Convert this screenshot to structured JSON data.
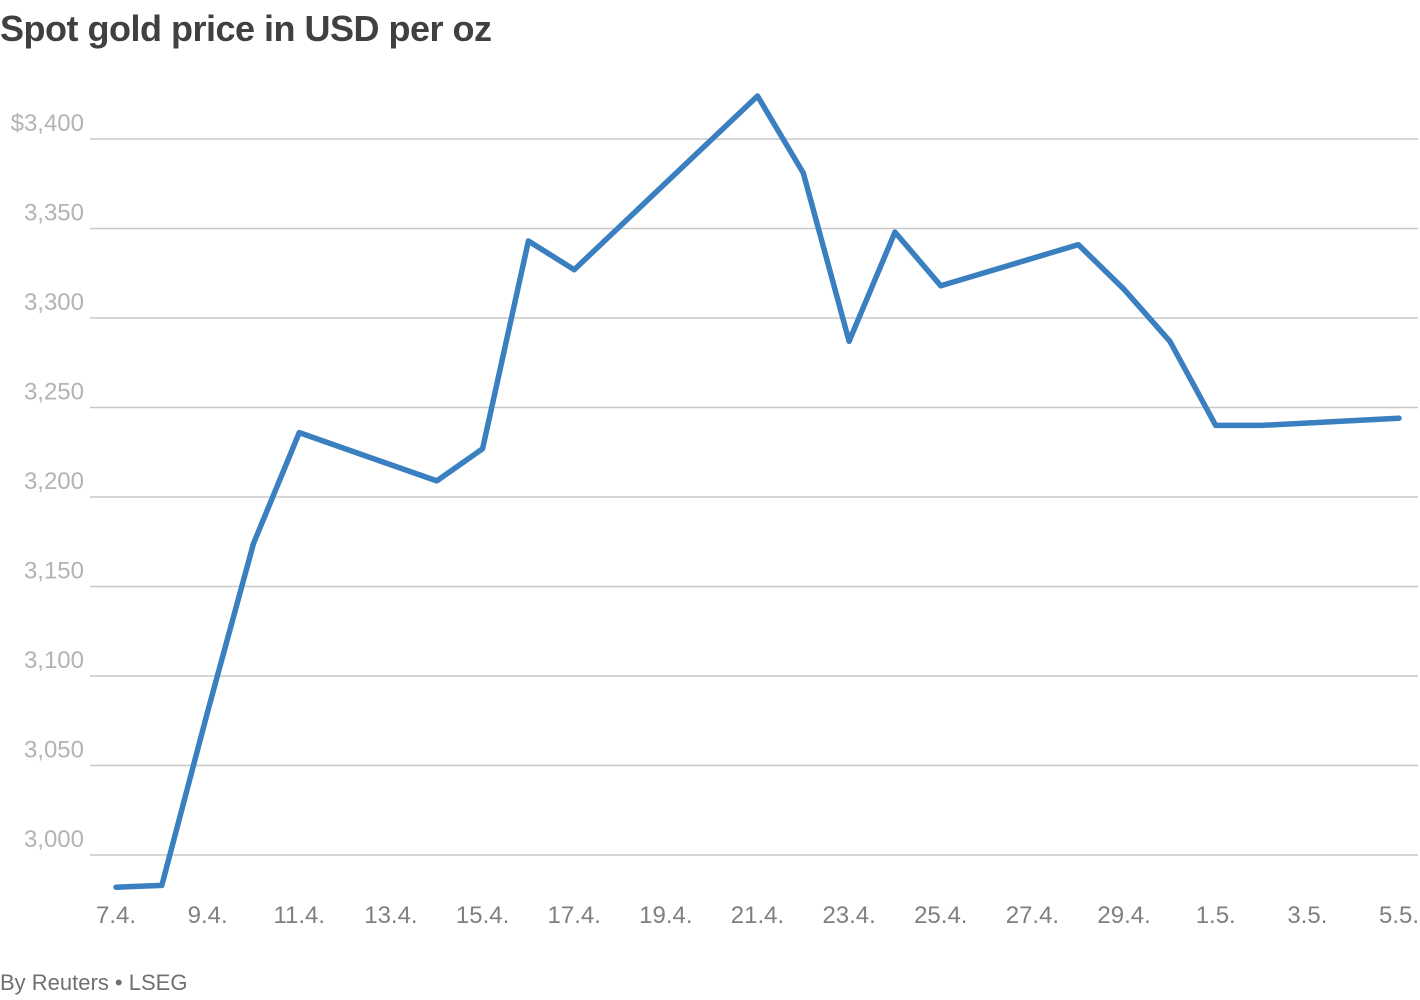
{
  "header": {
    "title": "Spot gold price in USD per oz"
  },
  "footer": {
    "source": "By Reuters • LSEG"
  },
  "colors": {
    "line": "#3a7fbf",
    "grid": "#c8c8c8",
    "y_tick_text": "#b3b3b3",
    "x_tick_text": "#7f7f7f",
    "title_text": "#404040"
  },
  "chart_data": {
    "type": "line",
    "title": "Spot gold price in USD per oz",
    "xlabel": "",
    "ylabel": "",
    "ylim": [
      2975,
      3430
    ],
    "grid": true,
    "y_ticks": [
      {
        "value": 3400,
        "label": "$3,400"
      },
      {
        "value": 3350,
        "label": "3,350"
      },
      {
        "value": 3300,
        "label": "3,300"
      },
      {
        "value": 3250,
        "label": "3,250"
      },
      {
        "value": 3200,
        "label": "3,200"
      },
      {
        "value": 3150,
        "label": "3,150"
      },
      {
        "value": 3100,
        "label": "3,100"
      },
      {
        "value": 3050,
        "label": "3,050"
      },
      {
        "value": 3000,
        "label": "3,000"
      }
    ],
    "x_ticks": [
      "7.4.",
      "9.4.",
      "11.4.",
      "13.4.",
      "15.4.",
      "17.4.",
      "19.4.",
      "21.4.",
      "23.4.",
      "25.4.",
      "27.4.",
      "29.4.",
      "1.5.",
      "3.5.",
      "5.5."
    ],
    "x": [
      "7.4.",
      "8.4.",
      "9.4.",
      "10.4.",
      "11.4.",
      "14.4.",
      "15.4.",
      "16.4.",
      "17.4.",
      "21.4.",
      "22.4.",
      "23.4.",
      "24.4.",
      "25.4.",
      "28.4.",
      "29.4.",
      "30.4.",
      "1.5.",
      "2.5.",
      "5.5."
    ],
    "series": [
      {
        "values": [
          2982,
          2983,
          3080,
          3174,
          3236,
          3209,
          3227,
          3343,
          3327,
          3424,
          3381,
          3287,
          3348,
          3318,
          3341,
          3316,
          3287,
          3240,
          3240,
          3244
        ]
      }
    ]
  }
}
